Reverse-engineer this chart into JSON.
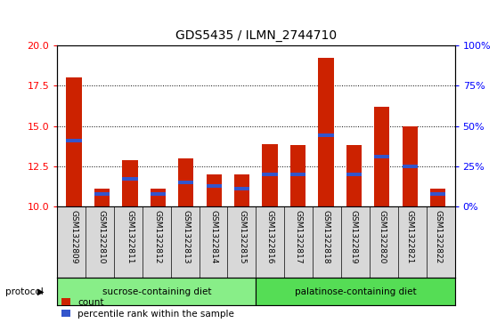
{
  "title": "GDS5435 / ILMN_2744710",
  "samples": [
    "GSM1322809",
    "GSM1322810",
    "GSM1322811",
    "GSM1322812",
    "GSM1322813",
    "GSM1322814",
    "GSM1322815",
    "GSM1322816",
    "GSM1322817",
    "GSM1322818",
    "GSM1322819",
    "GSM1322820",
    "GSM1322821",
    "GSM1322822"
  ],
  "bar_heights": [
    18.0,
    11.1,
    12.9,
    11.1,
    13.0,
    12.0,
    12.0,
    13.9,
    13.8,
    19.2,
    13.8,
    16.2,
    15.0,
    11.1
  ],
  "blue_positions": [
    14.1,
    10.8,
    11.7,
    10.8,
    11.5,
    11.3,
    11.1,
    12.0,
    12.0,
    14.4,
    12.0,
    13.1,
    12.5,
    10.8
  ],
  "ymin": 10,
  "ymax": 20,
  "yticks_left": [
    10,
    12.5,
    15,
    17.5,
    20
  ],
  "yticks_right": [
    0,
    25,
    50,
    75,
    100
  ],
  "bar_color": "#cc2200",
  "blue_color": "#3355cc",
  "bg_color": "#d8d8d8",
  "group1_label": "sucrose-containing diet",
  "group2_label": "palatinose-containing diet",
  "group1_count": 7,
  "group2_count": 7,
  "group1_color": "#88ee88",
  "group2_color": "#55dd55",
  "legend_count": "count",
  "legend_pct": "percentile rank within the sample",
  "protocol_label": "protocol",
  "bar_width": 0.55
}
